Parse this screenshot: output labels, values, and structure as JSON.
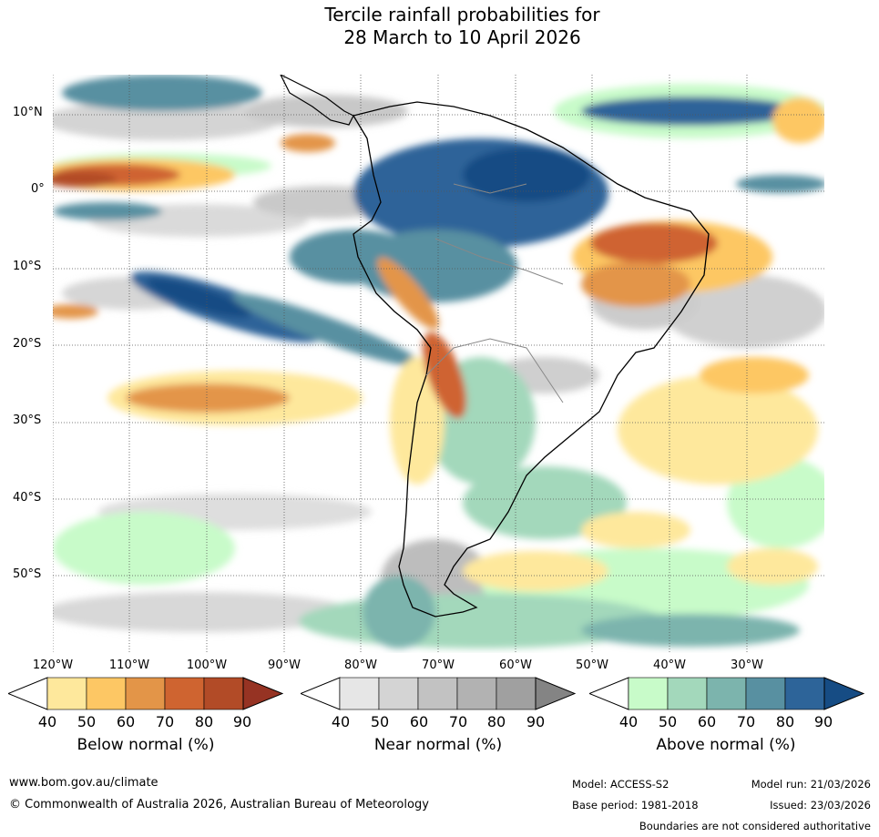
{
  "title": {
    "line1": "Tercile rainfall probabilities for",
    "line2": "28 March to 10 April 2026"
  },
  "map": {
    "lat_labels": [
      "10°N",
      "0°",
      "10°S",
      "20°S",
      "30°S",
      "40°S",
      "50°S"
    ],
    "lon_labels": [
      "120°W",
      "110°W",
      "100°W",
      "90°W",
      "80°W",
      "70°W",
      "60°W",
      "50°W",
      "40°W",
      "30°W"
    ]
  },
  "colorbars": [
    {
      "label": "Below normal (%)",
      "ticks": [
        "40",
        "50",
        "60",
        "70",
        "80",
        "90"
      ],
      "colors": [
        "#ffffff",
        "#fee89c",
        "#fdc764",
        "#e39548",
        "#cf6430",
        "#b24b27",
        "#963323"
      ]
    },
    {
      "label": "Near normal (%)",
      "ticks": [
        "40",
        "50",
        "60",
        "70",
        "80",
        "90"
      ],
      "colors": [
        "#ffffff",
        "#e6e6e6",
        "#d4d4d4",
        "#c2c2c2",
        "#b2b2b2",
        "#a0a0a0",
        "#848484"
      ]
    },
    {
      "label": "Above normal (%)",
      "ticks": [
        "40",
        "50",
        "60",
        "70",
        "80",
        "90"
      ],
      "colors": [
        "#ffffff",
        "#c8fbc9",
        "#a3d8bb",
        "#7cb4ad",
        "#5890a1",
        "#2d6499",
        "#164c84"
      ]
    }
  ],
  "footer": {
    "website": "www.bom.gov.au/climate",
    "copyright": "© Commonwealth of Australia 2026, Australian Bureau of Meteorology",
    "model": "Model: ACCESS-S2",
    "base_period": "Base period: 1981-2018",
    "model_run": "Model run: 21/03/2026",
    "issued": "Issued: 23/03/2026",
    "disclaimer": "Boundaries are not considered authoritative"
  }
}
